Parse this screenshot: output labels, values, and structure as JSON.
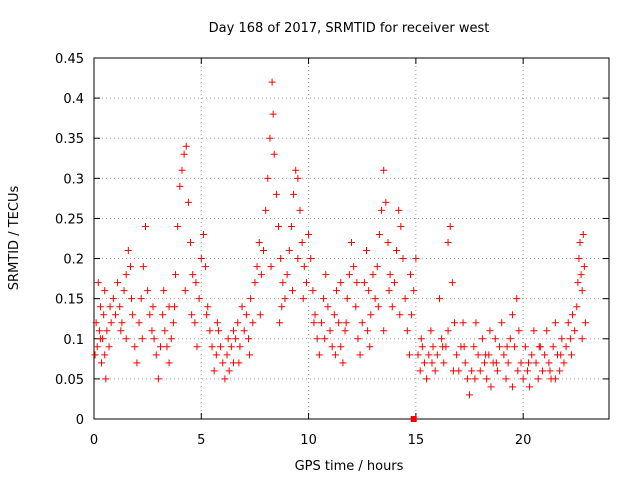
{
  "chart_data": {
    "type": "scatter",
    "title": "Day 168 of 2017, SRMTID for receiver west",
    "xlabel": "GPS time / hours",
    "ylabel": "SRMTID / TECUs",
    "xlim": [
      0,
      24
    ],
    "ylim": [
      0,
      0.45
    ],
    "grid": true,
    "marker": "plus",
    "color": "#ff0000",
    "xticks": [
      0,
      5,
      10,
      15,
      20
    ],
    "xtick_labels": [
      "0",
      "5",
      "10",
      "15",
      "20"
    ],
    "yticks": [
      0,
      0.05,
      0.1,
      0.15,
      0.2,
      0.25,
      0.3,
      0.35,
      0.4,
      0.45
    ],
    "ytick_labels": [
      "0",
      "0.05",
      "0.1",
      "0.15",
      "0.2",
      "0.25",
      "0.3",
      "0.35",
      "0.4",
      "0.45"
    ],
    "series": [
      {
        "name": "west",
        "points": [
          [
            0.05,
            0.08
          ],
          [
            0.1,
            0.12
          ],
          [
            0.15,
            0.09
          ],
          [
            0.2,
            0.17
          ],
          [
            0.25,
            0.11
          ],
          [
            0.3,
            0.14
          ],
          [
            0.35,
            0.07
          ],
          [
            0.4,
            0.1
          ],
          [
            0.45,
            0.13
          ],
          [
            0.5,
            0.08
          ],
          [
            0.55,
            0.05
          ],
          [
            0.6,
            0.11
          ],
          [
            0.7,
            0.09
          ],
          [
            0.8,
            0.12
          ],
          [
            0.9,
            0.15
          ],
          [
            1.0,
            0.13
          ],
          [
            1.1,
            0.17
          ],
          [
            1.2,
            0.14
          ],
          [
            1.3,
            0.12
          ],
          [
            1.4,
            0.16
          ],
          [
            1.5,
            0.1
          ],
          [
            1.6,
            0.21
          ],
          [
            1.7,
            0.19
          ],
          [
            1.8,
            0.13
          ],
          [
            1.9,
            0.09
          ],
          [
            2.0,
            0.07
          ],
          [
            2.1,
            0.12
          ],
          [
            2.2,
            0.15
          ],
          [
            2.3,
            0.19
          ],
          [
            2.4,
            0.24
          ],
          [
            2.5,
            0.16
          ],
          [
            2.6,
            0.13
          ],
          [
            2.7,
            0.11
          ],
          [
            2.8,
            0.1
          ],
          [
            2.9,
            0.08
          ],
          [
            3.0,
            0.05
          ],
          [
            3.1,
            0.09
          ],
          [
            3.2,
            0.13
          ],
          [
            3.3,
            0.11
          ],
          [
            3.4,
            0.09
          ],
          [
            3.5,
            0.07
          ],
          [
            3.6,
            0.1
          ],
          [
            3.7,
            0.12
          ],
          [
            3.8,
            0.18
          ],
          [
            3.9,
            0.24
          ],
          [
            4.0,
            0.29
          ],
          [
            4.1,
            0.31
          ],
          [
            4.2,
            0.33
          ],
          [
            4.3,
            0.34
          ],
          [
            4.4,
            0.27
          ],
          [
            4.5,
            0.22
          ],
          [
            4.6,
            0.18
          ],
          [
            4.7,
            0.12
          ],
          [
            4.8,
            0.09
          ],
          [
            4.9,
            0.15
          ],
          [
            5.0,
            0.2
          ],
          [
            5.1,
            0.23
          ],
          [
            5.2,
            0.19
          ],
          [
            5.3,
            0.14
          ],
          [
            5.4,
            0.11
          ],
          [
            5.5,
            0.09
          ],
          [
            5.6,
            0.06
          ],
          [
            5.7,
            0.08
          ],
          [
            5.8,
            0.11
          ],
          [
            5.9,
            0.09
          ],
          [
            6.0,
            0.07
          ],
          [
            6.1,
            0.05
          ],
          [
            6.2,
            0.08
          ],
          [
            6.3,
            0.06
          ],
          [
            6.4,
            0.09
          ],
          [
            6.5,
            0.07
          ],
          [
            6.6,
            0.1
          ],
          [
            6.7,
            0.12
          ],
          [
            6.8,
            0.09
          ],
          [
            6.9,
            0.14
          ],
          [
            7.0,
            0.11
          ],
          [
            7.1,
            0.13
          ],
          [
            7.2,
            0.1
          ],
          [
            7.3,
            0.15
          ],
          [
            7.4,
            0.12
          ],
          [
            7.5,
            0.17
          ],
          [
            7.6,
            0.19
          ],
          [
            7.7,
            0.22
          ],
          [
            7.8,
            0.18
          ],
          [
            7.9,
            0.21
          ],
          [
            8.0,
            0.26
          ],
          [
            8.1,
            0.3
          ],
          [
            8.2,
            0.35
          ],
          [
            8.3,
            0.42
          ],
          [
            8.35,
            0.38
          ],
          [
            8.4,
            0.33
          ],
          [
            8.5,
            0.28
          ],
          [
            8.6,
            0.24
          ],
          [
            8.7,
            0.2
          ],
          [
            8.8,
            0.17
          ],
          [
            8.9,
            0.15
          ],
          [
            9.0,
            0.18
          ],
          [
            9.1,
            0.21
          ],
          [
            9.2,
            0.24
          ],
          [
            9.3,
            0.28
          ],
          [
            9.4,
            0.31
          ],
          [
            9.5,
            0.3
          ],
          [
            9.6,
            0.26
          ],
          [
            9.7,
            0.22
          ],
          [
            9.8,
            0.19
          ],
          [
            9.9,
            0.17
          ],
          [
            10.0,
            0.23
          ],
          [
            10.1,
            0.2
          ],
          [
            10.2,
            0.16
          ],
          [
            10.3,
            0.13
          ],
          [
            10.4,
            0.1
          ],
          [
            10.5,
            0.08
          ],
          [
            10.6,
            0.12
          ],
          [
            10.7,
            0.15
          ],
          [
            10.8,
            0.18
          ],
          [
            10.9,
            0.14
          ],
          [
            11.0,
            0.11
          ],
          [
            11.1,
            0.09
          ],
          [
            11.2,
            0.13
          ],
          [
            11.3,
            0.16
          ],
          [
            11.4,
            0.12
          ],
          [
            11.5,
            0.09
          ],
          [
            11.6,
            0.07
          ],
          [
            11.7,
            0.11
          ],
          [
            11.8,
            0.15
          ],
          [
            11.9,
            0.18
          ],
          [
            12.0,
            0.22
          ],
          [
            12.1,
            0.19
          ],
          [
            12.2,
            0.14
          ],
          [
            12.3,
            0.1
          ],
          [
            12.4,
            0.08
          ],
          [
            12.5,
            0.12
          ],
          [
            12.6,
            0.17
          ],
          [
            12.7,
            0.21
          ],
          [
            12.8,
            0.16
          ],
          [
            12.9,
            0.13
          ],
          [
            13.0,
            0.18
          ],
          [
            13.1,
            0.15
          ],
          [
            13.2,
            0.19
          ],
          [
            13.3,
            0.23
          ],
          [
            13.4,
            0.26
          ],
          [
            13.5,
            0.31
          ],
          [
            13.6,
            0.27
          ],
          [
            13.7,
            0.22
          ],
          [
            13.8,
            0.18
          ],
          [
            13.9,
            0.14
          ],
          [
            14.0,
            0.17
          ],
          [
            14.1,
            0.21
          ],
          [
            14.2,
            0.26
          ],
          [
            14.3,
            0.24
          ],
          [
            14.4,
            0.2
          ],
          [
            14.5,
            0.15
          ],
          [
            14.6,
            0.11
          ],
          [
            14.7,
            0.08
          ],
          [
            14.8,
            0.13
          ],
          [
            14.9,
            0.16
          ],
          [
            15.0,
            0.2
          ],
          [
            15.1,
            0.08
          ],
          [
            15.2,
            0.06
          ],
          [
            15.3,
            0.09
          ],
          [
            15.4,
            0.07
          ],
          [
            15.5,
            0.05
          ],
          [
            15.6,
            0.08
          ],
          [
            15.7,
            0.11
          ],
          [
            15.8,
            0.09
          ],
          [
            15.9,
            0.06
          ],
          [
            16.0,
            0.08
          ],
          [
            16.1,
            0.15
          ],
          [
            16.2,
            0.1
          ],
          [
            16.3,
            0.07
          ],
          [
            16.4,
            0.09
          ],
          [
            16.5,
            0.22
          ],
          [
            16.6,
            0.24
          ],
          [
            16.7,
            0.17
          ],
          [
            16.8,
            0.12
          ],
          [
            16.9,
            0.08
          ],
          [
            17.0,
            0.06
          ],
          [
            17.1,
            0.09
          ],
          [
            17.2,
            0.12
          ],
          [
            17.3,
            0.07
          ],
          [
            17.4,
            0.05
          ],
          [
            17.5,
            0.03
          ],
          [
            17.6,
            0.06
          ],
          [
            17.7,
            0.09
          ],
          [
            17.8,
            0.12
          ],
          [
            17.9,
            0.08
          ],
          [
            18.0,
            0.06
          ],
          [
            18.1,
            0.1
          ],
          [
            18.2,
            0.07
          ],
          [
            18.3,
            0.05
          ],
          [
            18.4,
            0.08
          ],
          [
            18.5,
            0.04
          ],
          [
            18.6,
            0.07
          ],
          [
            18.7,
            0.1
          ],
          [
            18.8,
            0.06
          ],
          [
            18.9,
            0.09
          ],
          [
            19.0,
            0.12
          ],
          [
            19.1,
            0.08
          ],
          [
            19.2,
            0.05
          ],
          [
            19.3,
            0.07
          ],
          [
            19.4,
            0.1
          ],
          [
            19.5,
            0.13
          ],
          [
            19.6,
            0.09
          ],
          [
            19.7,
            0.15
          ],
          [
            19.8,
            0.11
          ],
          [
            19.9,
            0.07
          ],
          [
            20.0,
            0.05
          ],
          [
            20.1,
            0.09
          ],
          [
            20.2,
            0.06
          ],
          [
            20.3,
            0.04
          ],
          [
            20.4,
            0.08
          ],
          [
            20.5,
            0.11
          ],
          [
            20.6,
            0.07
          ],
          [
            20.7,
            0.05
          ],
          [
            20.8,
            0.09
          ],
          [
            20.9,
            0.06
          ],
          [
            21.0,
            0.08
          ],
          [
            21.1,
            0.11
          ],
          [
            21.2,
            0.07
          ],
          [
            21.3,
            0.05
          ],
          [
            21.4,
            0.09
          ],
          [
            21.5,
            0.12
          ],
          [
            21.6,
            0.08
          ],
          [
            21.7,
            0.06
          ],
          [
            21.8,
            0.1
          ],
          [
            21.9,
            0.07
          ],
          [
            22.0,
            0.09
          ],
          [
            22.1,
            0.12
          ],
          [
            22.2,
            0.1
          ],
          [
            22.3,
            0.13
          ],
          [
            22.4,
            0.11
          ],
          [
            22.5,
            0.14
          ],
          [
            22.55,
            0.17
          ],
          [
            22.6,
            0.2
          ],
          [
            22.65,
            0.22
          ],
          [
            22.7,
            0.18
          ],
          [
            22.75,
            0.16
          ],
          [
            22.8,
            0.23
          ],
          [
            22.85,
            0.19
          ],
          [
            22.9,
            0.12
          ],
          [
            0.3,
            0.1
          ],
          [
            0.75,
            0.14
          ],
          [
            1.25,
            0.11
          ],
          [
            1.75,
            0.15
          ],
          [
            2.25,
            0.1
          ],
          [
            2.75,
            0.14
          ],
          [
            3.25,
            0.16
          ],
          [
            3.75,
            0.14
          ],
          [
            4.25,
            0.16
          ],
          [
            4.75,
            0.17
          ],
          [
            5.25,
            0.13
          ],
          [
            5.75,
            0.12
          ],
          [
            6.25,
            0.1
          ],
          [
            6.75,
            0.07
          ],
          [
            7.25,
            0.08
          ],
          [
            7.75,
            0.13
          ],
          [
            8.25,
            0.19
          ],
          [
            8.75,
            0.14
          ],
          [
            9.25,
            0.16
          ],
          [
            9.75,
            0.15
          ],
          [
            10.25,
            0.12
          ],
          [
            10.75,
            0.1
          ],
          [
            11.25,
            0.08
          ],
          [
            11.75,
            0.12
          ],
          [
            12.25,
            0.17
          ],
          [
            12.75,
            0.11
          ],
          [
            13.25,
            0.14
          ],
          [
            13.75,
            0.16
          ],
          [
            14.25,
            0.13
          ],
          [
            14.75,
            0.18
          ],
          [
            15.25,
            0.1
          ],
          [
            15.75,
            0.07
          ],
          [
            16.25,
            0.09
          ],
          [
            16.75,
            0.06
          ],
          [
            17.25,
            0.09
          ],
          [
            17.75,
            0.05
          ],
          [
            18.25,
            0.08
          ],
          [
            18.75,
            0.07
          ],
          [
            19.25,
            0.09
          ],
          [
            19.75,
            0.06
          ],
          [
            20.25,
            0.07
          ],
          [
            20.75,
            0.09
          ],
          [
            21.25,
            0.06
          ],
          [
            21.75,
            0.08
          ],
          [
            22.25,
            0.08
          ],
          [
            22.75,
            0.1
          ],
          [
            0.5,
            0.16
          ],
          [
            1.5,
            0.18
          ],
          [
            3.5,
            0.14
          ],
          [
            6.5,
            0.11
          ],
          [
            9.5,
            0.2
          ],
          [
            11.5,
            0.17
          ],
          [
            13.5,
            0.11
          ],
          [
            16.5,
            0.11
          ],
          [
            19.5,
            0.04
          ],
          [
            21.5,
            0.05
          ],
          [
            4.55,
            0.13
          ],
          [
            8.65,
            0.12
          ],
          [
            12.85,
            0.09
          ],
          [
            18.45,
            0.11
          ]
        ]
      }
    ],
    "special_marker": {
      "x": 14.9,
      "y": 0.0,
      "color": "#ff0000",
      "shape": "square"
    }
  }
}
